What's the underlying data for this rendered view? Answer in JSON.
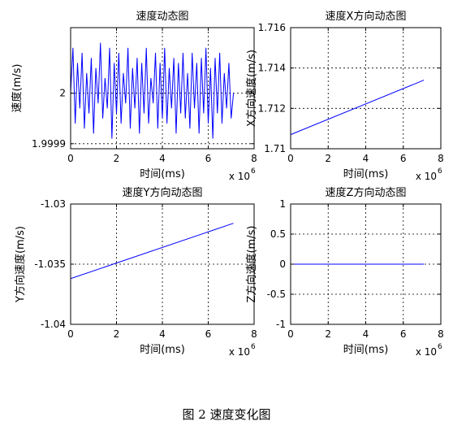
{
  "figure_caption": "图 2  速度变化图",
  "chart_data": [
    {
      "type": "line",
      "title": "速度动态图",
      "xlabel": "时间(ms)",
      "ylabel": "速度(m/s)",
      "x_multiplier": "x 10",
      "x_multiplier_exp": "6",
      "xlim": [
        0,
        8
      ],
      "ylim": [
        1.99989,
        2.00013
      ],
      "xticks": [
        0,
        2,
        4,
        6,
        8
      ],
      "xtick_labels": [
        "0",
        "2",
        "4",
        "6",
        "8"
      ],
      "yticks": [
        1.9999,
        2
      ],
      "ytick_labels": [
        "1.9999",
        "2"
      ],
      "grid": true,
      "series": [
        {
          "color": "#0000ff",
          "x": [
            0.0,
            0.1,
            0.2,
            0.3,
            0.4,
            0.5,
            0.6,
            0.7,
            0.8,
            0.9,
            1.0,
            1.1,
            1.2,
            1.3,
            1.4,
            1.5,
            1.6,
            1.7,
            1.8,
            1.9,
            2.0,
            2.1,
            2.2,
            2.3,
            2.4,
            2.5,
            2.6,
            2.7,
            2.8,
            2.9,
            3.0,
            3.1,
            3.2,
            3.3,
            3.4,
            3.5,
            3.6,
            3.7,
            3.8,
            3.9,
            4.0,
            4.1,
            4.2,
            4.3,
            4.4,
            4.5,
            4.6,
            4.7,
            4.8,
            4.9,
            5.0,
            5.1,
            5.2,
            5.3,
            5.4,
            5.5,
            5.6,
            5.7,
            5.8,
            5.9,
            6.0,
            6.1,
            6.2,
            6.3,
            6.4,
            6.5,
            6.6,
            6.7,
            6.8,
            6.9,
            7.0,
            7.1
          ],
          "y": [
            2.0,
            2.00009,
            1.99994,
            2.00006,
            1.99997,
            2.00008,
            1.99993,
            2.00004,
            1.99996,
            2.00007,
            1.99992,
            2.00005,
            1.99998,
            2.0001,
            1.99995,
            2.00003,
            1.99997,
            2.00009,
            1.99991,
            2.00006,
            1.99996,
            2.00008,
            1.99994,
            2.00004,
            1.99998,
            2.00009,
            1.99993,
            2.00005,
            1.99997,
            2.00007,
            1.99992,
            2.00006,
            1.99996,
            2.00009,
            1.99994,
            2.00003,
            1.99998,
            2.00008,
            1.99993,
            2.00006,
            1.99995,
            2.00009,
            1.99994,
            2.00005,
            1.99997,
            2.00007,
            1.99992,
            2.00006,
            1.99996,
            2.00008,
            1.99995,
            2.00004,
            1.99993,
            2.00008,
            1.99997,
            2.00006,
            1.99992,
            2.00007,
            1.99996,
            2.00009,
            1.99994,
            2.00005,
            1.99991,
            2.00007,
            1.99996,
            2.00008,
            1.99994,
            2.00004,
            1.99997,
            2.00006,
            1.99995,
            2.0
          ]
        }
      ]
    },
    {
      "type": "line",
      "title": "速度X方向动态图",
      "xlabel": "时间(ms)",
      "ylabel": "X方向速度(m/s)",
      "x_multiplier": "x 10",
      "x_multiplier_exp": "6",
      "xlim": [
        0,
        8
      ],
      "ylim": [
        1.71,
        1.716
      ],
      "xticks": [
        0,
        2,
        4,
        6,
        8
      ],
      "xtick_labels": [
        "0",
        "2",
        "4",
        "6",
        "8"
      ],
      "yticks": [
        1.71,
        1.712,
        1.714,
        1.716
      ],
      "ytick_labels": [
        "1.71",
        "1.712",
        "1.714",
        "1.716"
      ],
      "grid": true,
      "series": [
        {
          "color": "#0000ff",
          "x": [
            0,
            7.1
          ],
          "y": [
            1.7107,
            1.7134
          ]
        }
      ]
    },
    {
      "type": "line",
      "title": "速度Y方向动态图",
      "xlabel": "时间(ms)",
      "ylabel": "Y方向速度(m/s)",
      "x_multiplier": "x 10",
      "x_multiplier_exp": "6",
      "xlim": [
        0,
        8
      ],
      "ylim": [
        -1.04,
        -1.03
      ],
      "xticks": [
        0,
        2,
        4,
        6,
        8
      ],
      "xtick_labels": [
        "0",
        "2",
        "4",
        "6",
        "8"
      ],
      "yticks": [
        -1.04,
        -1.035,
        -1.03
      ],
      "ytick_labels": [
        "-1.04",
        "-1.035",
        "-1.03"
      ],
      "grid": true,
      "series": [
        {
          "color": "#0000ff",
          "x": [
            0,
            7.1
          ],
          "y": [
            -1.0362,
            -1.0316
          ]
        }
      ]
    },
    {
      "type": "line",
      "title": "速度Z方向动态图",
      "xlabel": "时间(ms)",
      "ylabel": "Z方向速度(m/s)",
      "x_multiplier": "x 10",
      "x_multiplier_exp": "6",
      "xlim": [
        0,
        8
      ],
      "ylim": [
        -1,
        1
      ],
      "xticks": [
        0,
        2,
        4,
        6,
        8
      ],
      "xtick_labels": [
        "0",
        "2",
        "4",
        "6",
        "8"
      ],
      "yticks": [
        -1,
        -0.5,
        0,
        0.5,
        1
      ],
      "ytick_labels": [
        "-1",
        "-0.5",
        "0",
        "0.5",
        "1"
      ],
      "grid": true,
      "series": [
        {
          "color": "#0000ff",
          "x": [
            0,
            7.1
          ],
          "y": [
            0,
            0
          ]
        }
      ]
    }
  ]
}
